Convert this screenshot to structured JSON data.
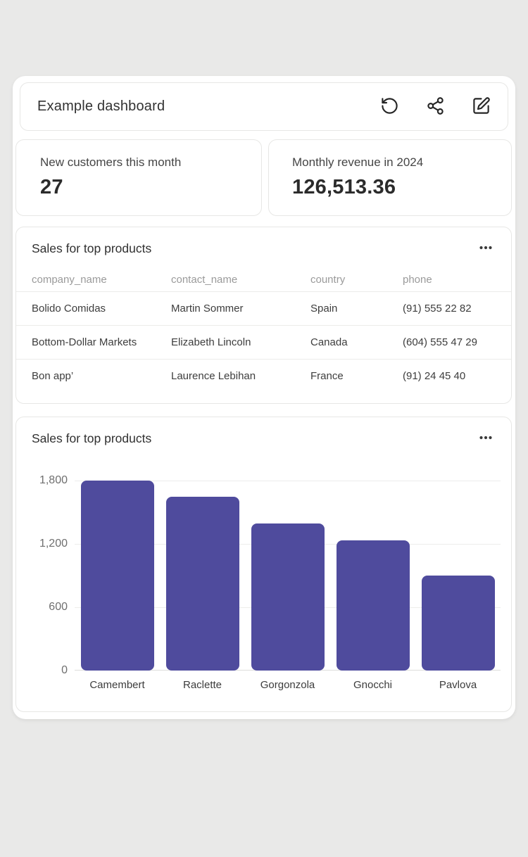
{
  "header": {
    "title": "Example dashboard",
    "actions": [
      {
        "label": "refresh",
        "icon": "rotate-ccw-icon"
      },
      {
        "label": "share",
        "icon": "share-icon"
      },
      {
        "label": "edit",
        "icon": "edit-pencil-icon"
      }
    ]
  },
  "stats": [
    {
      "label": "New customers this month",
      "value": "27"
    },
    {
      "label": "Monthly revenue in 2024",
      "value": "126,513.36"
    }
  ],
  "table_card": {
    "title": "Sales for top products",
    "menu_icon": "ellipsis-icon",
    "columns": [
      "company_name",
      "contact_name",
      "country",
      "phone"
    ],
    "rows": [
      [
        "Bolido Comidas",
        "Martin Sommer",
        "Spain",
        "(91) 555 22 82"
      ],
      [
        "Bottom-Dollar Markets",
        "Elizabeth Lincoln",
        "Canada",
        "(604) 555 47 29"
      ],
      [
        "Bon app’",
        "Laurence Lebihan",
        "France",
        "(91) 24 45 40"
      ]
    ]
  },
  "chart_card": {
    "title": "Sales for top products",
    "menu_icon": "ellipsis-icon"
  },
  "chart_data": {
    "type": "bar",
    "title": "Sales for top products",
    "categories": [
      "Camembert",
      "Raclette",
      "Gorgonzola",
      "Gnocchi",
      "Pavlova"
    ],
    "values": [
      1800,
      1645,
      1390,
      1230,
      900
    ],
    "xlabel": "",
    "ylabel": "",
    "ylim": [
      0,
      1800
    ],
    "yticks": [
      0,
      600,
      1200,
      1800
    ],
    "ytick_labels": [
      "0",
      "600",
      "1,200",
      "1,800"
    ],
    "bar_color": "#4f4b9d",
    "grid": "horizontal",
    "legend_position": "none"
  },
  "colors": {
    "background": "#e9e9e8",
    "card_background": "#ffffff",
    "card_border": "#e7e7e5",
    "accent_bar": "#4f4b9d",
    "text_primary": "#333333",
    "text_muted": "#9a9a9a"
  }
}
